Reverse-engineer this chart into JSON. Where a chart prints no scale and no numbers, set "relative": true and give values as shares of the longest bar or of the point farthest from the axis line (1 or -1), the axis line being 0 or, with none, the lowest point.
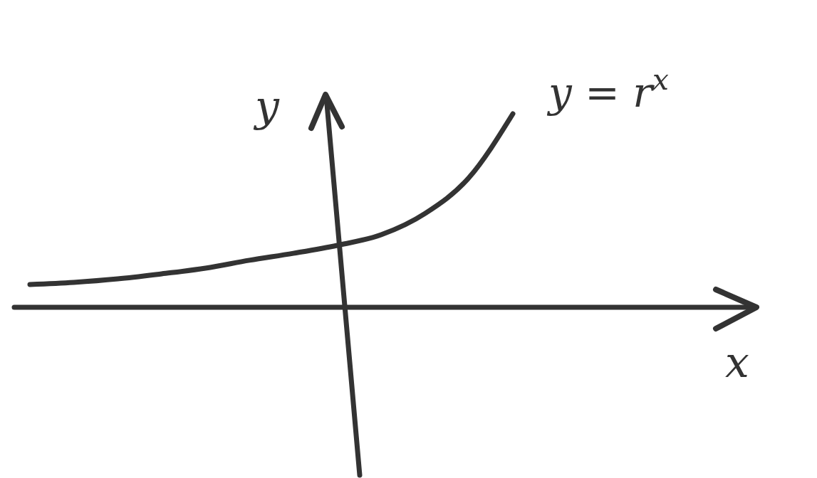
{
  "chart_data": {
    "type": "line",
    "relative": true,
    "xlabel": "x",
    "ylabel": "y",
    "annotations": [
      "y = r$^{x}$"
    ],
    "color": "#333333",
    "categories": [
      null,
      null,
      null,
      null,
      null,
      null,
      null,
      null,
      null,
      null,
      null,
      null
    ],
    "values": [
      0.118,
      0.129,
      0.147,
      0.173,
      0.202,
      0.243,
      0.279,
      0.32,
      0.375,
      0.485,
      0.67,
      1
    ]
  }
}
